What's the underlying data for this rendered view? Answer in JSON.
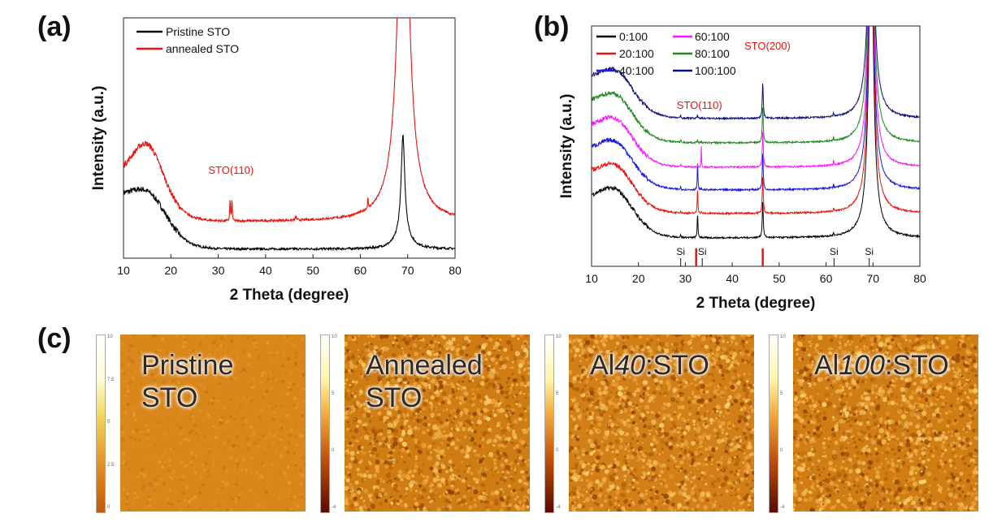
{
  "panels": {
    "a": "(a)",
    "b": "(b)",
    "c": "(c)"
  },
  "chart_data": [
    {
      "id": "a",
      "type": "line",
      "xlabel": "2 Theta (degree)",
      "ylabel": "Intensity (a.u.)",
      "xlim": [
        10,
        80
      ],
      "xticks": [
        10,
        20,
        30,
        40,
        50,
        60,
        70,
        80
      ],
      "legend_position": "top-left",
      "series": [
        {
          "name": "Pristine STO",
          "color": "#000000",
          "baseline": 0.05,
          "peaks": [
            [
              69.0,
              1.08
            ]
          ]
        },
        {
          "name": "annealed STO",
          "color": "#e8140f",
          "baseline": 0.2,
          "peaks": [
            [
              32.7,
              0.25
            ],
            [
              46.5,
              0.02
            ],
            [
              61.6,
              0.07
            ],
            [
              68.4,
              3.0
            ],
            [
              69.8,
              3.0
            ]
          ]
        }
      ],
      "annotations": [
        {
          "text": "STO(110)",
          "x": 32.7,
          "color": "#e8140f"
        }
      ]
    },
    {
      "id": "b",
      "type": "line",
      "xlabel": "2 Theta (degree)",
      "ylabel": "Intensity (a.u.)",
      "xlim": [
        10,
        80
      ],
      "xticks": [
        10,
        20,
        30,
        40,
        50,
        60,
        70,
        80
      ],
      "legend_position": "top-left",
      "series": [
        {
          "name": "0:100",
          "color": "#000000"
        },
        {
          "name": "20:100",
          "color": "#e8140f"
        },
        {
          "name": "40:100",
          "color": "#1a1adc"
        },
        {
          "name": "60:100",
          "color": "#ff14ff"
        },
        {
          "name": "80:100",
          "color": "#1f8a1f"
        },
        {
          "name": "100:100",
          "color": "#0b0b7a"
        }
      ],
      "annotations": [
        {
          "text": "STO(110)",
          "x": 33.0,
          "color": "#e8140f"
        },
        {
          "text": "STO(200)",
          "x": 47.5,
          "color": "#e8140f"
        },
        {
          "text": "Si",
          "x": 29.0
        },
        {
          "text": "Si",
          "x": 33.6
        },
        {
          "text": "Si",
          "x": 61.7
        },
        {
          "text": "Si",
          "x": 69.2
        }
      ],
      "reference_lines": [
        32.3,
        46.5
      ]
    }
  ],
  "afm": [
    {
      "label_a": "Pristine",
      "label_b": "STO",
      "label_italic": "",
      "label_c": "",
      "cbar": [
        "10",
        "7.5",
        "5",
        "2.5",
        "0"
      ],
      "color": "#d9861a"
    },
    {
      "label_a": "Annealed",
      "label_b": "STO",
      "label_italic": "",
      "label_c": "",
      "cbar": [
        "10",
        "5",
        "0",
        "-4"
      ],
      "color": "#cf7c12"
    },
    {
      "label_a": "Al",
      "label_b": "",
      "label_italic": "40",
      "label_c": ":STO",
      "cbar": [
        "10",
        "5",
        "0",
        "-4"
      ],
      "color": "#d27f18"
    },
    {
      "label_a": "Al",
      "label_b": "",
      "label_italic": "100",
      "label_c": ":STO",
      "cbar": [
        "10",
        "5",
        "0",
        "-4"
      ],
      "color": "#d07e14"
    }
  ]
}
